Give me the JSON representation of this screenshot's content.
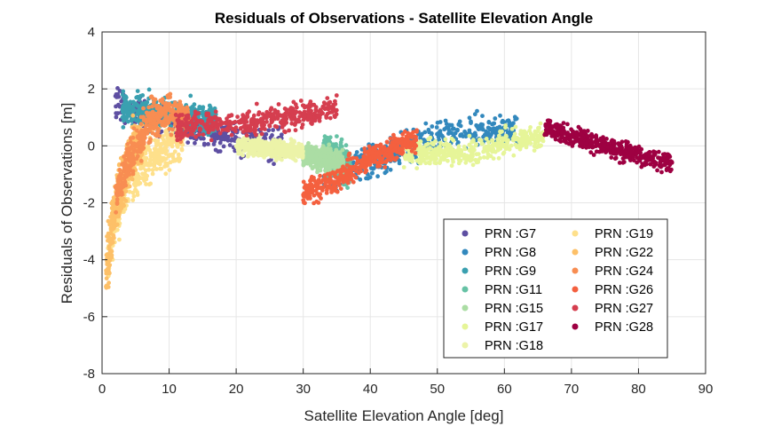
{
  "chart_data": {
    "type": "scatter",
    "title": "Residuals of Observations - Satellite Elevation Angle",
    "xlabel": "Satellite Elevation Angle [deg]",
    "ylabel": "Residuals of Observations [m]",
    "xlim": [
      0,
      90
    ],
    "ylim": [
      -8,
      4
    ],
    "xticks": [
      "0",
      "10",
      "20",
      "30",
      "40",
      "50",
      "60",
      "70",
      "80",
      "90"
    ],
    "yticks": [
      "4",
      "2",
      "0",
      "-2",
      "-4",
      "-6",
      "-8"
    ],
    "grid": true,
    "legend_position": "bottom-right",
    "series": [
      {
        "name": "PRN :G7",
        "color": "#5e4fa2",
        "x_range": [
          2,
          27
        ],
        "trend": [
          [
            2,
            1.6
          ],
          [
            5,
            1.2
          ],
          [
            15,
            0.5
          ],
          [
            27,
            0.0
          ]
        ],
        "spread": 0.55
      },
      {
        "name": "PRN :G8",
        "color": "#3288bd",
        "x_range": [
          33,
          62
        ],
        "trend": [
          [
            33,
            -1.2
          ],
          [
            40,
            -0.6
          ],
          [
            48,
            0.1
          ],
          [
            55,
            0.6
          ],
          [
            62,
            0.5
          ]
        ],
        "spread": 0.55
      },
      {
        "name": "PRN :G9",
        "color": "#3aa0b0",
        "x_range": [
          3,
          17
        ],
        "trend": [
          [
            3,
            1.3
          ],
          [
            10,
            1.1
          ],
          [
            17,
            0.9
          ]
        ],
        "spread": 0.55
      },
      {
        "name": "PRN :G11",
        "color": "#66c2a5",
        "x_range": [
          33,
          37
        ],
        "trend": [
          [
            33,
            -0.2
          ],
          [
            37,
            -0.8
          ]
        ],
        "spread": 0.6
      },
      {
        "name": "PRN :G15",
        "color": "#abdda4",
        "x_range": [
          30,
          36
        ],
        "trend": [
          [
            30,
            -0.3
          ],
          [
            36,
            -0.6
          ]
        ],
        "spread": 0.4
      },
      {
        "name": "PRN :G17",
        "color": "#e6f598",
        "x_range": [
          45,
          66
        ],
        "trend": [
          [
            45,
            -0.3
          ],
          [
            55,
            -0.2
          ],
          [
            66,
            0.4
          ]
        ],
        "spread": 0.45
      },
      {
        "name": "PRN :G18",
        "color": "#ecf3a8",
        "x_range": [
          20,
          30
        ],
        "trend": [
          [
            20,
            0.0
          ],
          [
            30,
            -0.2
          ]
        ],
        "spread": 0.3
      },
      {
        "name": "PRN :G19",
        "color": "#fee08b",
        "x_range": [
          0.8,
          12
        ],
        "trend": [
          [
            0.8,
            -4.0
          ],
          [
            2,
            -2.5
          ],
          [
            4,
            -1.0
          ],
          [
            8,
            -0.3
          ],
          [
            12,
            0.2
          ]
        ],
        "spread": 0.9
      },
      {
        "name": "PRN :G22",
        "color": "#fdc068",
        "x_range": [
          0.6,
          6
        ],
        "trend": [
          [
            0.6,
            -4.5
          ],
          [
            2,
            -2.0
          ],
          [
            4,
            -0.5
          ],
          [
            6,
            0.2
          ]
        ],
        "spread": 0.9
      },
      {
        "name": "PRN :G24",
        "color": "#f88d52",
        "x_range": [
          2,
          13
        ],
        "trend": [
          [
            2,
            -1.8
          ],
          [
            4,
            -0.6
          ],
          [
            7,
            0.9
          ],
          [
            10,
            1.2
          ],
          [
            13,
            0.8
          ]
        ],
        "spread": 0.7
      },
      {
        "name": "PRN :G26",
        "color": "#f4603f",
        "x_range": [
          30,
          47
        ],
        "trend": [
          [
            30,
            -1.6
          ],
          [
            35,
            -1.2
          ],
          [
            40,
            -0.4
          ],
          [
            47,
            0.2
          ]
        ],
        "spread": 0.45
      },
      {
        "name": "PRN :G27",
        "color": "#d53e4f",
        "x_range": [
          11,
          35
        ],
        "trend": [
          [
            11,
            0.7
          ],
          [
            20,
            0.8
          ],
          [
            28,
            1.0
          ],
          [
            35,
            1.3
          ]
        ],
        "spread": 0.45
      },
      {
        "name": "PRN :G28",
        "color": "#9e0142",
        "x_range": [
          66,
          85
        ],
        "trend": [
          [
            66,
            0.6
          ],
          [
            72,
            0.2
          ],
          [
            78,
            -0.2
          ],
          [
            85,
            -0.6
          ]
        ],
        "spread": 0.35
      }
    ]
  }
}
